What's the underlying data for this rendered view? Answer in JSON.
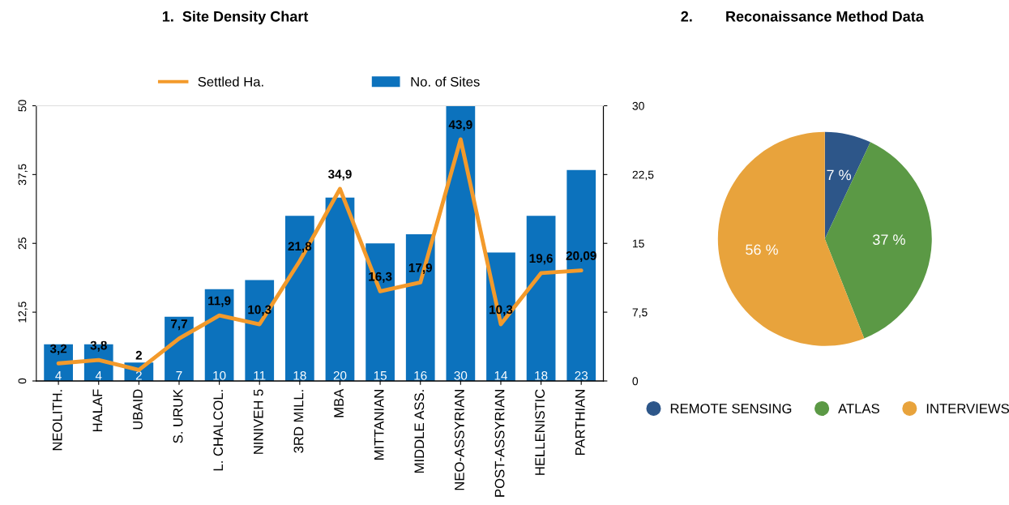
{
  "chart_data": [
    {
      "type": "bar",
      "title": "1.  Site Density Chart",
      "categories": [
        "NEOLITH.",
        "HALAF",
        "UBAID",
        "S. URUK",
        "L. CHALCOL.",
        "NINIVEH 5",
        "3RD MILL.",
        "MBA",
        "MITTANIAN",
        "MIDDLE ASS.",
        "NEO-ASSYRIAN",
        "POST-ASSYRIAN",
        "HELLENISTIC",
        "PARTHIAN"
      ],
      "series": [
        {
          "name": "Settled Ha.",
          "type": "line",
          "color": "#f39a2b",
          "values": [
            3.2,
            3.8,
            2,
            7.7,
            11.9,
            10.3,
            21.8,
            34.9,
            16.3,
            17.9,
            43.9,
            10.3,
            19.6,
            20.09
          ],
          "value_labels": [
            "3,2",
            "3,8",
            "2",
            "7,7",
            "11,9",
            "10,3",
            "21,8",
            "34,9",
            "16,3",
            "17,9",
            "43,9",
            "10,3",
            "19,6",
            "20,09"
          ]
        },
        {
          "name": "No. of Sites",
          "type": "bar",
          "axis": "y2",
          "color": "#0c72bd",
          "values": [
            4,
            4,
            2,
            7,
            10,
            11,
            18,
            20,
            15,
            16,
            30,
            14,
            18,
            23
          ],
          "value_labels": [
            "4",
            "4",
            "2",
            "7",
            "10",
            "11",
            "18",
            "20",
            "15",
            "16",
            "30",
            "14",
            "18",
            "23"
          ]
        }
      ],
      "ylim": [
        0,
        50
      ],
      "yticks": [
        0,
        {
          "value": 12.5,
          "label": "12,5"
        },
        25,
        {
          "value": 37.5,
          "label": "37,5"
        },
        50
      ],
      "y2lim": [
        0,
        30
      ],
      "y2ticks": [
        0,
        {
          "value": 7.5,
          "label": "7,5"
        },
        15,
        {
          "value": 22.5,
          "label": "22,5"
        },
        30
      ],
      "legend": "top",
      "grid": false
    },
    {
      "type": "pie",
      "title": "2.        Reconaissance Method Data",
      "categories": [
        "REMOTE SENSING",
        "ATLAS",
        "INTERVIEWS"
      ],
      "values": [
        7,
        37,
        56
      ],
      "colors": [
        "#2d5689",
        "#5b9945",
        "#e8a33c"
      ],
      "value_labels": [
        "7 %",
        "37 %",
        "56 %"
      ],
      "legend": "bottom"
    }
  ]
}
